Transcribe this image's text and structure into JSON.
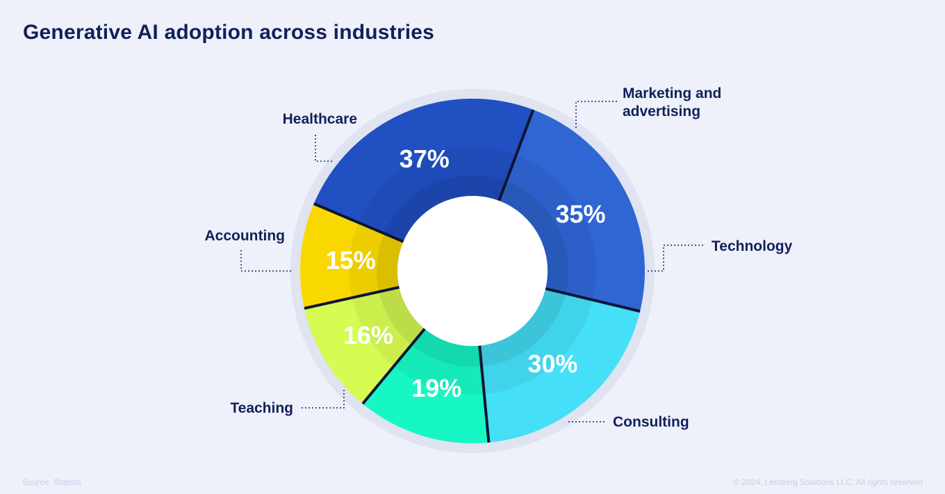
{
  "title": "Generative AI adoption across industries",
  "footer": {
    "source": "Source: Statista",
    "copyright": "© 2024, Lemberg Solutions LLC. All rights reserved"
  },
  "chart_data": {
    "type": "pie",
    "variant": "donut",
    "categories": [
      "Marketing and advertising",
      "Technology",
      "Consulting",
      "Teaching",
      "Accounting",
      "Healthcare"
    ],
    "values": [
      37,
      35,
      30,
      19,
      16,
      15
    ],
    "labels": [
      "37%",
      "35%",
      "30%",
      "19%",
      "16%",
      "15%"
    ],
    "colors": [
      "#2150c2",
      "#2f66d3",
      "#45dff7",
      "#17f7c6",
      "#d6fb52",
      "#f9d800"
    ],
    "start_angle_deg": -67,
    "legend": "outside labels with dotted leader lines"
  }
}
